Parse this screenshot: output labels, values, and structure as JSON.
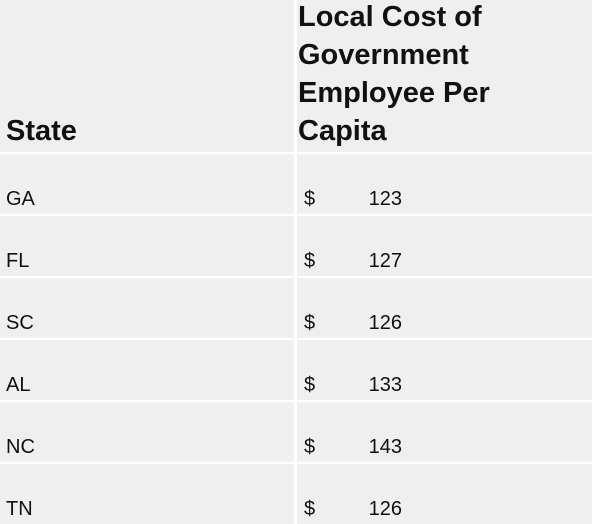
{
  "table": {
    "headers": [
      "State",
      "Local Cost of Government Employee Per Capita"
    ],
    "rows": [
      [
        "GA",
        "$",
        123
      ],
      [
        "FL",
        "$",
        127
      ],
      [
        "SC",
        "$",
        126
      ],
      [
        "AL",
        "$",
        133
      ],
      [
        "NC",
        "$",
        143
      ],
      [
        "TN",
        "$",
        126
      ]
    ]
  }
}
